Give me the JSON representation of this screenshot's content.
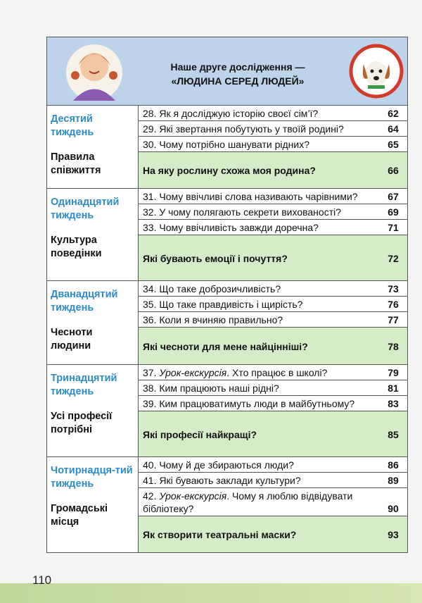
{
  "header": {
    "line1": "Наше друге дослідження —",
    "line2": "«ЛЮДИНА СЕРЕД ЛЮДЕЙ»"
  },
  "weeks": [
    {
      "week": "Десятий тиждень",
      "topic": "Правила співжиття",
      "lessons": [
        {
          "number": "28.",
          "text": "Як я досліджую історію своєї сім’ї?",
          "page": 62
        },
        {
          "number": "29.",
          "text": "Які звертання побутують у твоїй родині?",
          "page": 64
        },
        {
          "number": "30.",
          "text": "Чому потрібно шанувати рідних?",
          "page": 65
        }
      ],
      "final": {
        "text": "На яку рослину схожа моя родина?",
        "page": 66
      }
    },
    {
      "week": "Одинадцятий тиждень",
      "topic": "Культура поведінки",
      "lessons": [
        {
          "number": "31.",
          "text": "Чому ввічливі слова називають чарівними?",
          "page": 67
        },
        {
          "number": "32.",
          "text": "У чому полягають секрети вихованості?",
          "page": 69
        },
        {
          "number": "33.",
          "text": "Чому ввічливість завжди доречна?",
          "page": 71
        }
      ],
      "final": {
        "text": "Які бувають емоції і почуття?",
        "page": 72
      }
    },
    {
      "week": "Дванадцятий тиждень",
      "topic": "Чесноти людини",
      "lessons": [
        {
          "number": "34.",
          "text": "Що таке доброзичливість?",
          "page": 73
        },
        {
          "number": "35.",
          "text": "Що таке правдивість і щирість?",
          "page": 76
        },
        {
          "number": "36.",
          "text": "Коли я вчиняю правильно?",
          "page": 77
        }
      ],
      "final": {
        "text": "Які чесноти для мене найцінніші?",
        "page": 78
      }
    },
    {
      "week": "Тринадцятий тиждень",
      "topic": "Усі професії потрібні",
      "lessons": [
        {
          "number": "37.",
          "italic": "Урок-екскурсія",
          "text": ". Хто працює в школі?",
          "page": 79
        },
        {
          "number": "38.",
          "text": "Ким працюють наші рідні?",
          "page": 81
        },
        {
          "number": "39.",
          "text": "Ким працюватимуть люди в майбутньому?",
          "page": 83
        }
      ],
      "final": {
        "text": "Які професії найкращі?",
        "page": 85
      }
    },
    {
      "week": "Чотирнадця-тий тиждень",
      "topic": "Громадські місця",
      "lessons": [
        {
          "number": "40.",
          "text": "Чому й де збираються люди?",
          "page": 86
        },
        {
          "number": "41.",
          "text": "Які бувають заклади культури?",
          "page": 89
        },
        {
          "number": "42.",
          "italic": "Урок-екскурсія",
          "text": ". Чому я люблю відвідувати бібліотеку?",
          "page": 90
        }
      ],
      "final": {
        "text": "Як створити театральні маски?",
        "page": 93
      }
    }
  ],
  "page_number": "110"
}
